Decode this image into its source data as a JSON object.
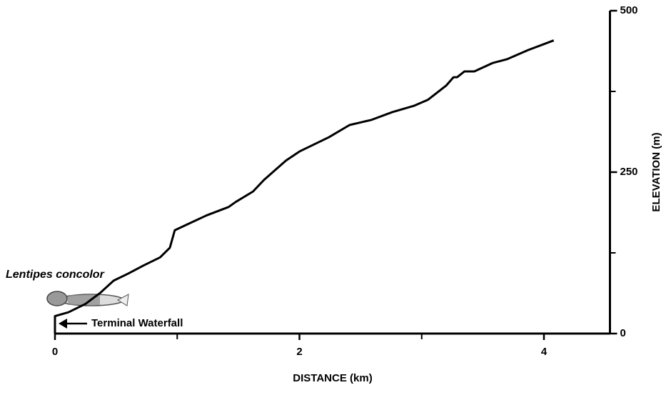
{
  "chart_data": {
    "type": "line",
    "x_label": "DISTANCE (km)",
    "y_label": "ELEVATION (m)",
    "x": [
      0,
      0,
      0.11,
      0.25,
      0.37,
      0.48,
      0.6,
      0.72,
      0.86,
      0.94,
      0.98,
      1.07,
      1.24,
      1.42,
      1.48,
      1.62,
      1.71,
      1.89,
      2.0,
      2.24,
      2.41,
      2.59,
      2.76,
      2.94,
      3.05,
      3.2,
      3.26,
      3.29,
      3.35,
      3.43,
      3.58,
      3.7,
      3.87,
      4.08
    ],
    "series": [
      {
        "color": "#000000",
        "values": [
          0,
          27,
          33,
          46,
          63,
          82,
          93,
          105,
          118,
          133,
          160,
          168,
          183,
          196,
          204,
          220,
          238,
          268,
          282,
          304,
          323,
          331,
          343,
          353,
          362,
          384,
          397,
          397,
          406,
          406,
          419,
          425,
          439,
          454
        ]
      }
    ],
    "xlim": [
      0,
      4.54
    ],
    "xticks": [
      0,
      2,
      4
    ],
    "xminor_ticks": [
      1,
      3
    ],
    "ylim": [
      0,
      500
    ],
    "yticks": [
      0,
      250,
      500
    ],
    "yminor_ticks": [
      125,
      375
    ],
    "annotations": {
      "species": "Lentipes concolor",
      "waterfall": "Terminal Waterfall"
    }
  }
}
